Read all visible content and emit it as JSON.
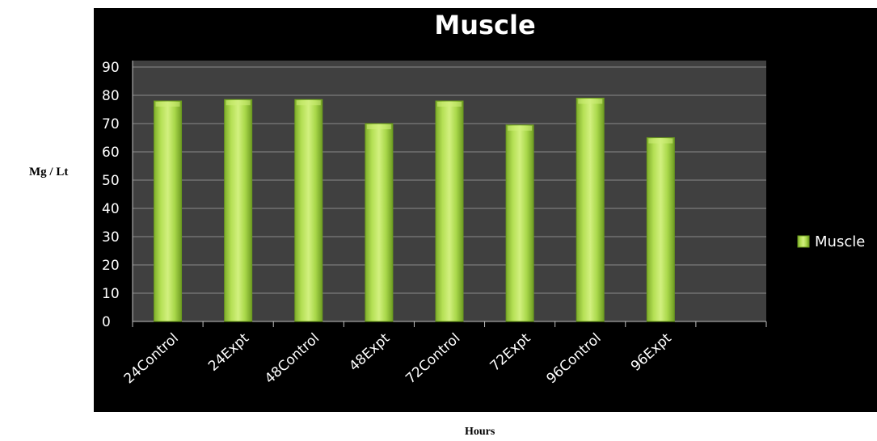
{
  "chart_data": {
    "type": "bar",
    "title": "Muscle",
    "xlabel": "Hours",
    "ylabel": "Mg / Lt",
    "categories": [
      "24Control",
      "24Expt",
      "48Control",
      "48Expt",
      "72Control",
      "72Expt",
      "96Control",
      "96Expt"
    ],
    "series": [
      {
        "name": "Muscle",
        "values": [
          78,
          78.5,
          78.5,
          70,
          78,
          69.5,
          79,
          65
        ]
      }
    ],
    "ylim": [
      0,
      90
    ],
    "yticks": [
      "0",
      "10",
      "20",
      "30",
      "40",
      "50",
      "60",
      "70",
      "80",
      "90"
    ],
    "grid": true,
    "legend_position": "right",
    "colors": {
      "background": "#000000",
      "plot_area": "#404040",
      "bar_light": "#cfee7a",
      "bar_mid": "#9bcf3c",
      "bar_dark": "#6a9a1e",
      "gridline": "#8a8a8a",
      "text": "#ffffff"
    }
  }
}
